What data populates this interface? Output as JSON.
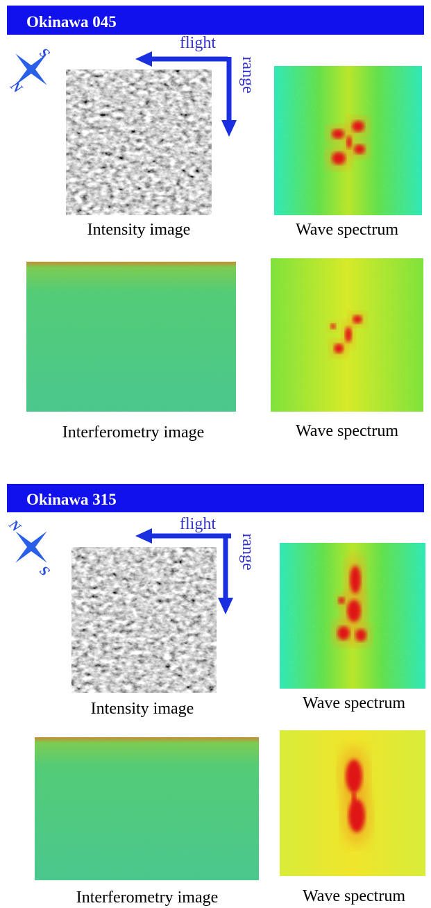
{
  "panels": [
    {
      "title": "Okinawa 045",
      "flight": "flight",
      "range": "range",
      "compass": {
        "north": "N",
        "south": "S"
      },
      "captions": [
        "Intensity image",
        "Wave spectrum",
        "Interferometry image",
        "Wave spectrum"
      ]
    },
    {
      "title": "Okinawa 315",
      "flight": "flight",
      "range": "range",
      "compass": {
        "north": "N",
        "south": "S"
      },
      "captions": [
        "Intensity image",
        "Wave spectrum",
        "Interferometry image",
        "Wave spectrum"
      ]
    }
  ]
}
